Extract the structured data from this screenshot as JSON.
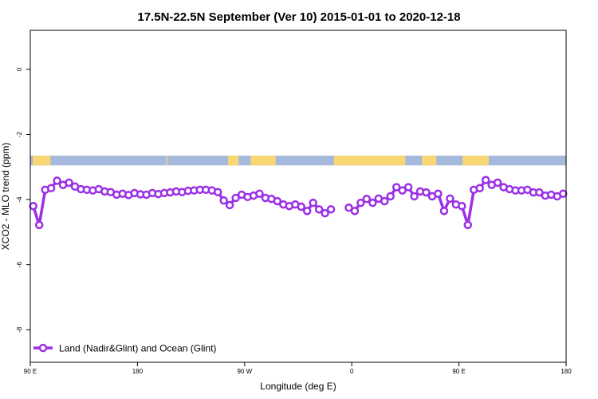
{
  "chart_data": {
    "type": "line",
    "title": "17.5N-22.5N September (Ver 10)   2015-01-01 to 2020-12-18",
    "xlabel": "Longitude (deg E)",
    "ylabel": "XCO2 - MLO trend (ppm)",
    "xlim": [
      0,
      450
    ],
    "ylim": [
      -9,
      1.2
    ],
    "x_ticks": [
      {
        "value": 0,
        "label": "90 E"
      },
      {
        "value": 90,
        "label": "180"
      },
      {
        "value": 180,
        "label": "90 W"
      },
      {
        "value": 270,
        "label": "0"
      },
      {
        "value": 360,
        "label": "90 E"
      },
      {
        "value": 450,
        "label": "180"
      }
    ],
    "y_ticks": [
      {
        "value": 0,
        "label": "0"
      },
      {
        "value": -2,
        "label": "-2"
      },
      {
        "value": -4,
        "label": "-4"
      },
      {
        "value": -6,
        "label": "-6"
      },
      {
        "value": -8,
        "label": "-8"
      }
    ],
    "land_ocean_strip": {
      "y_range": [
        -2.95,
        -2.65
      ],
      "ocean_color": "#a5b9dd",
      "land_color": "#f8d774",
      "land_segments": [
        [
          2,
          17
        ],
        [
          114,
          115
        ],
        [
          166,
          175
        ],
        [
          185,
          206
        ],
        [
          255,
          315
        ],
        [
          329,
          341
        ],
        [
          363,
          385
        ]
      ]
    },
    "legend": {
      "position": "bottom-left"
    },
    "series": [
      {
        "name": "Land (Nadir&Glint) and Ocean (Glint)",
        "color": "#9b30e6",
        "segments": [
          {
            "x": [
              2.5,
              7.5,
              12.5,
              17.5,
              22.5,
              27.5,
              32.5,
              37.5,
              42.5,
              47.5,
              52.5,
              57.5,
              62.5,
              67.5,
              72.5,
              77.5,
              82.5,
              87.5,
              92.5,
              97.5,
              102.5,
              107.5,
              112.5,
              117.5,
              122.5,
              127.5,
              132.5,
              137.5,
              142.5,
              147.5,
              152.5,
              157.5,
              162.5,
              167.5,
              172.5,
              177.5,
              182.5,
              187.5,
              192.5,
              197.5,
              202.5,
              207.5,
              212.5,
              217.5,
              222.5,
              227.5,
              232.5,
              237.5,
              242.5,
              247.5,
              252.5
            ],
            "y": [
              -4.2,
              -4.78,
              -3.7,
              -3.65,
              -3.42,
              -3.55,
              -3.48,
              -3.6,
              -3.68,
              -3.7,
              -3.72,
              -3.68,
              -3.75,
              -3.77,
              -3.85,
              -3.82,
              -3.86,
              -3.8,
              -3.84,
              -3.85,
              -3.8,
              -3.83,
              -3.8,
              -3.78,
              -3.75,
              -3.77,
              -3.73,
              -3.72,
              -3.7,
              -3.7,
              -3.72,
              -3.77,
              -4.03,
              -4.17,
              -3.95,
              -3.85,
              -3.92,
              -3.88,
              -3.82,
              -3.95,
              -3.98,
              -4.05,
              -4.15,
              -4.2,
              -4.15,
              -4.22,
              -4.35,
              -4.1,
              -4.3,
              -4.42,
              -4.3
            ]
          },
          {
            "x": [
              267.5,
              272.5,
              277.5,
              282.5,
              287.5,
              292.5,
              297.5,
              302.5,
              307.5,
              312.5,
              317.5,
              322.5,
              327.5,
              332.5,
              337.5,
              342.5,
              347.5,
              352.5,
              357.5,
              362.5,
              367.5,
              372.5,
              377.5,
              382.5,
              387.5,
              392.5,
              397.5,
              402.5,
              407.5,
              412.5,
              417.5,
              422.5,
              427.5,
              432.5,
              437.5,
              442.5,
              447.5
            ],
            "y": [
              -4.25,
              -4.35,
              -4.1,
              -3.98,
              -4.1,
              -3.97,
              -4.05,
              -3.9,
              -3.62,
              -3.72,
              -3.62,
              -3.9,
              -3.75,
              -3.78,
              -3.9,
              -3.82,
              -4.35,
              -3.97,
              -4.15,
              -4.2,
              -4.78,
              -3.7,
              -3.65,
              -3.4,
              -3.55,
              -3.48,
              -3.62,
              -3.68,
              -3.72,
              -3.72,
              -3.7,
              -3.78,
              -3.78,
              -3.88,
              -3.85,
              -3.9,
              -3.82
            ]
          }
        ]
      }
    ]
  }
}
